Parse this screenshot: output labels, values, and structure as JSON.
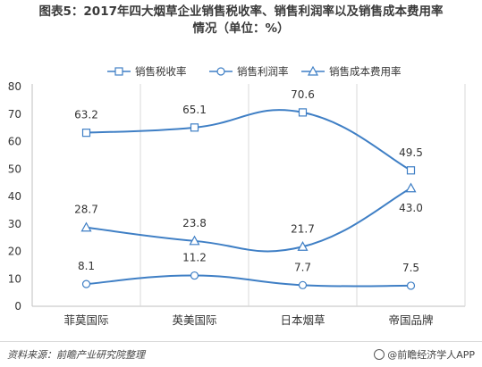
{
  "title_line1": "图表5：2017年四大烟草企业销售税收率、销售利润率以及销售成本费用率",
  "title_line2": "情况（单位：%）",
  "source_text": "资料来源：前瞻产业研究院整理",
  "brand_text": "@前瞻经济学人APP",
  "colors": {
    "line": "#3f7fc5",
    "axis": "#bfbfbf",
    "text": "#333333"
  },
  "chart_data": {
    "type": "line",
    "categories": [
      "菲莫国际",
      "英美国际",
      "日本烟草",
      "帝国品牌"
    ],
    "ylim": [
      0,
      80
    ],
    "yticks": [
      0,
      10,
      20,
      30,
      40,
      50,
      60,
      70,
      80
    ],
    "grid": "vertical category separators",
    "legend_position": "top",
    "series": [
      {
        "name": "销售税收率",
        "marker": "square",
        "values": [
          63.2,
          65.1,
          70.6,
          49.5
        ],
        "labels": [
          "63.2",
          "65.1",
          "70.6",
          "49.5"
        ]
      },
      {
        "name": "销售利润率",
        "marker": "circle",
        "values": [
          8.1,
          11.2,
          7.7,
          7.5
        ],
        "labels": [
          "8.1",
          "11.2",
          "7.7",
          "7.5"
        ]
      },
      {
        "name": "销售成本费用率",
        "marker": "triangle",
        "values": [
          28.7,
          23.8,
          21.7,
          43.0
        ],
        "labels": [
          "28.7",
          "23.8",
          "21.7",
          "43.0"
        ]
      }
    ]
  }
}
